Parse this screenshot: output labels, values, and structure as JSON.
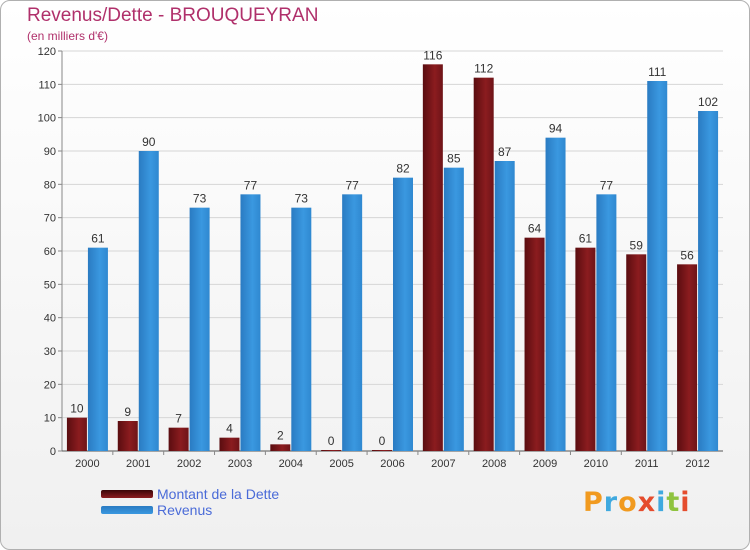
{
  "colors": {
    "dette": "#8b1c1f",
    "revenus": "#3a98e0",
    "title": "#b0306b",
    "legend_text": "#4a6bd8"
  },
  "logo": {
    "text": "Proxiti",
    "letters": [
      "P",
      "r",
      "o",
      "x",
      "i",
      "t",
      "i"
    ],
    "letter_colors": [
      "#f19a1f",
      "#3fa9df",
      "#f19a1f",
      "#e54c2d",
      "#3fa9df",
      "#8fc33f",
      "#e54c2d"
    ]
  },
  "chart_data": {
    "type": "bar",
    "title": "Revenus/Dette - BROUQUEYRAN",
    "subtitle": "(en milliers d'€)",
    "categories": [
      "2000",
      "2001",
      "2002",
      "2003",
      "2004",
      "2005",
      "2006",
      "2007",
      "2008",
      "2009",
      "2010",
      "2011",
      "2012"
    ],
    "series": [
      {
        "name": "Montant de la Dette",
        "values": [
          10,
          9,
          7,
          4,
          2,
          0,
          0,
          116,
          112,
          64,
          61,
          59,
          56
        ]
      },
      {
        "name": "Revenus",
        "values": [
          61,
          90,
          73,
          77,
          73,
          77,
          82,
          85,
          87,
          94,
          77,
          111,
          102
        ]
      }
    ],
    "ylim": [
      0,
      120
    ],
    "yticks": [
      0,
      10,
      20,
      30,
      40,
      50,
      60,
      70,
      80,
      90,
      100,
      110,
      120
    ],
    "grid": true,
    "legend_position": "bottom-left"
  }
}
